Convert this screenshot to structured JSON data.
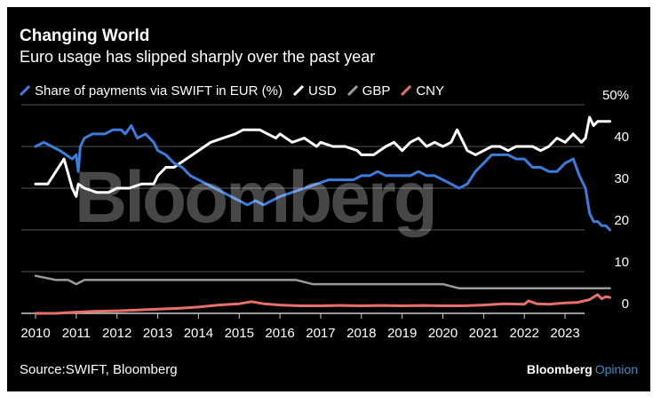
{
  "title": "Changing World",
  "subtitle": "Euro usage has slipped sharply over the past year",
  "source": "Source:SWIFT, Bloomberg",
  "logo": {
    "brand": "Bloomberg",
    "suffix": "Opinion",
    "watermark": "Bloomberg"
  },
  "colors": {
    "EUR": "#3b7ddd",
    "USD": "#ffffff",
    "GBP": "#9a9a9a",
    "CNY": "#e8706a",
    "grid": "#555555",
    "background": "#000000"
  },
  "legend": [
    {
      "label": "Share of payments via SWIFT in EUR (%)",
      "color": "#3b7ddd"
    },
    {
      "label": "USD",
      "color": "#ffffff"
    },
    {
      "label": "GBP",
      "color": "#9a9a9a"
    },
    {
      "label": "CNY",
      "color": "#e8706a"
    }
  ],
  "chart_data": {
    "type": "line",
    "title": "Changing World",
    "subtitle": "Euro usage has slipped sharply over the past year",
    "ylabel": "",
    "xlabel": "",
    "y_unit_label": "50%",
    "ylim": [
      0,
      50
    ],
    "xlim": [
      2010,
      2024
    ],
    "y_ticks": [
      0,
      10,
      20,
      30,
      40,
      50
    ],
    "y_tick_labels": [
      "0",
      "10",
      "20",
      "30",
      "40",
      "50%"
    ],
    "x_ticks": [
      2010,
      2011,
      2012,
      2013,
      2014,
      2015,
      2016,
      2017,
      2018,
      2019,
      2020,
      2021,
      2022,
      2023
    ],
    "x_tick_labels": [
      "2010",
      "2011",
      "2012",
      "2013",
      "2014",
      "2015",
      "2016",
      "2017",
      "2018",
      "2019",
      "2020",
      "2021",
      "2022",
      "2023"
    ],
    "grid": true,
    "legend_position": "top-left",
    "series": [
      {
        "name": "Share of payments via SWIFT in EUR (%)",
        "color": "#3b7ddd",
        "points": [
          [
            2010.0,
            40
          ],
          [
            2010.2,
            41
          ],
          [
            2010.4,
            40
          ],
          [
            2010.6,
            39
          ],
          [
            2010.75,
            38
          ],
          [
            2010.9,
            37
          ],
          [
            2011.0,
            38
          ],
          [
            2011.05,
            34
          ],
          [
            2011.1,
            40
          ],
          [
            2011.2,
            42
          ],
          [
            2011.4,
            43
          ],
          [
            2011.7,
            43
          ],
          [
            2011.9,
            44
          ],
          [
            2012.1,
            44
          ],
          [
            2012.2,
            43
          ],
          [
            2012.35,
            45
          ],
          [
            2012.5,
            42
          ],
          [
            2012.7,
            43
          ],
          [
            2012.9,
            41
          ],
          [
            2013.0,
            39
          ],
          [
            2013.2,
            38
          ],
          [
            2013.4,
            36
          ],
          [
            2013.6,
            35
          ],
          [
            2013.8,
            33
          ],
          [
            2014.0,
            32
          ],
          [
            2014.2,
            31
          ],
          [
            2014.4,
            30
          ],
          [
            2014.6,
            29
          ],
          [
            2014.8,
            28
          ],
          [
            2015.0,
            27
          ],
          [
            2015.2,
            26
          ],
          [
            2015.4,
            27
          ],
          [
            2015.6,
            26
          ],
          [
            2015.8,
            27
          ],
          [
            2016.0,
            28
          ],
          [
            2016.3,
            29
          ],
          [
            2016.6,
            30
          ],
          [
            2016.9,
            31
          ],
          [
            2017.2,
            32
          ],
          [
            2017.5,
            32
          ],
          [
            2017.8,
            32
          ],
          [
            2018.0,
            33
          ],
          [
            2018.2,
            33
          ],
          [
            2018.4,
            34
          ],
          [
            2018.6,
            33
          ],
          [
            2018.8,
            33
          ],
          [
            2019.0,
            33
          ],
          [
            2019.2,
            33
          ],
          [
            2019.4,
            34
          ],
          [
            2019.6,
            33
          ],
          [
            2019.8,
            33
          ],
          [
            2020.0,
            32
          ],
          [
            2020.2,
            31
          ],
          [
            2020.4,
            30
          ],
          [
            2020.6,
            31
          ],
          [
            2020.8,
            34
          ],
          [
            2021.0,
            36
          ],
          [
            2021.2,
            38
          ],
          [
            2021.4,
            38
          ],
          [
            2021.6,
            38
          ],
          [
            2021.8,
            37
          ],
          [
            2022.0,
            37
          ],
          [
            2022.2,
            35
          ],
          [
            2022.4,
            35
          ],
          [
            2022.6,
            34
          ],
          [
            2022.8,
            34
          ],
          [
            2023.0,
            36
          ],
          [
            2023.2,
            37
          ],
          [
            2023.35,
            33
          ],
          [
            2023.5,
            30
          ],
          [
            2023.6,
            24
          ],
          [
            2023.7,
            22
          ],
          [
            2023.8,
            22
          ],
          [
            2023.9,
            21
          ],
          [
            2024.0,
            21
          ],
          [
            2024.1,
            20
          ]
        ]
      },
      {
        "name": "USD",
        "color": "#ffffff",
        "points": [
          [
            2010.0,
            31
          ],
          [
            2010.3,
            31
          ],
          [
            2010.5,
            34
          ],
          [
            2010.7,
            37
          ],
          [
            2010.9,
            30
          ],
          [
            2011.0,
            28
          ],
          [
            2011.05,
            31
          ],
          [
            2011.2,
            30
          ],
          [
            2011.5,
            29
          ],
          [
            2011.8,
            29
          ],
          [
            2012.0,
            30
          ],
          [
            2012.3,
            30
          ],
          [
            2012.6,
            31
          ],
          [
            2012.9,
            31
          ],
          [
            2013.0,
            33
          ],
          [
            2013.2,
            35
          ],
          [
            2013.4,
            35
          ],
          [
            2013.7,
            37
          ],
          [
            2014.0,
            39
          ],
          [
            2014.3,
            41
          ],
          [
            2014.6,
            42
          ],
          [
            2014.9,
            43
          ],
          [
            2015.1,
            44
          ],
          [
            2015.3,
            44
          ],
          [
            2015.5,
            44
          ],
          [
            2015.7,
            43
          ],
          [
            2015.9,
            42
          ],
          [
            2016.0,
            43
          ],
          [
            2016.3,
            41
          ],
          [
            2016.6,
            42
          ],
          [
            2016.9,
            40
          ],
          [
            2017.0,
            41
          ],
          [
            2017.3,
            40
          ],
          [
            2017.6,
            40
          ],
          [
            2017.9,
            39
          ],
          [
            2018.0,
            38
          ],
          [
            2018.3,
            38
          ],
          [
            2018.6,
            40
          ],
          [
            2018.8,
            41
          ],
          [
            2019.0,
            39
          ],
          [
            2019.2,
            41
          ],
          [
            2019.4,
            42
          ],
          [
            2019.6,
            40
          ],
          [
            2019.8,
            41
          ],
          [
            2020.0,
            40
          ],
          [
            2020.2,
            41
          ],
          [
            2020.35,
            44
          ],
          [
            2020.5,
            41
          ],
          [
            2020.6,
            39
          ],
          [
            2020.8,
            38
          ],
          [
            2021.0,
            39
          ],
          [
            2021.2,
            40
          ],
          [
            2021.4,
            40
          ],
          [
            2021.6,
            39
          ],
          [
            2021.8,
            40
          ],
          [
            2022.0,
            40
          ],
          [
            2022.2,
            40
          ],
          [
            2022.4,
            39
          ],
          [
            2022.6,
            40
          ],
          [
            2022.8,
            42
          ],
          [
            2023.0,
            41
          ],
          [
            2023.2,
            43
          ],
          [
            2023.4,
            41
          ],
          [
            2023.5,
            42
          ],
          [
            2023.6,
            47
          ],
          [
            2023.7,
            45
          ],
          [
            2023.8,
            46
          ],
          [
            2024.0,
            46
          ],
          [
            2024.1,
            46
          ]
        ]
      },
      {
        "name": "GBP",
        "color": "#9a9a9a",
        "points": [
          [
            2010.0,
            9
          ],
          [
            2010.5,
            8
          ],
          [
            2010.8,
            8
          ],
          [
            2011.0,
            7
          ],
          [
            2011.2,
            8
          ],
          [
            2011.6,
            8
          ],
          [
            2012.0,
            8
          ],
          [
            2012.4,
            8
          ],
          [
            2012.8,
            8
          ],
          [
            2013.2,
            8
          ],
          [
            2013.6,
            8
          ],
          [
            2014.0,
            8
          ],
          [
            2014.4,
            8
          ],
          [
            2014.8,
            8
          ],
          [
            2015.2,
            8
          ],
          [
            2015.6,
            8
          ],
          [
            2016.0,
            8
          ],
          [
            2016.4,
            8
          ],
          [
            2016.8,
            7
          ],
          [
            2017.2,
            7
          ],
          [
            2017.6,
            7
          ],
          [
            2018.0,
            7
          ],
          [
            2018.4,
            7
          ],
          [
            2018.8,
            7
          ],
          [
            2019.2,
            7
          ],
          [
            2019.6,
            7
          ],
          [
            2020.0,
            7
          ],
          [
            2020.4,
            6
          ],
          [
            2020.8,
            6
          ],
          [
            2021.2,
            6
          ],
          [
            2021.6,
            6
          ],
          [
            2022.0,
            6
          ],
          [
            2022.4,
            6
          ],
          [
            2022.8,
            6
          ],
          [
            2023.2,
            6
          ],
          [
            2023.6,
            6
          ],
          [
            2024.0,
            6
          ],
          [
            2024.1,
            6
          ]
        ]
      },
      {
        "name": "CNY",
        "color": "#e8706a",
        "points": [
          [
            2010.0,
            0
          ],
          [
            2010.5,
            0
          ],
          [
            2011.0,
            0.3
          ],
          [
            2011.5,
            0.5
          ],
          [
            2012.0,
            0.6
          ],
          [
            2012.5,
            0.8
          ],
          [
            2013.0,
            1
          ],
          [
            2013.5,
            1.2
          ],
          [
            2014.0,
            1.5
          ],
          [
            2014.5,
            2
          ],
          [
            2015.0,
            2.3
          ],
          [
            2015.3,
            2.8
          ],
          [
            2015.6,
            2.3
          ],
          [
            2016.0,
            2
          ],
          [
            2016.5,
            1.8
          ],
          [
            2017.0,
            1.8
          ],
          [
            2017.5,
            1.9
          ],
          [
            2018.0,
            1.8
          ],
          [
            2018.5,
            1.9
          ],
          [
            2019.0,
            1.8
          ],
          [
            2019.5,
            1.9
          ],
          [
            2020.0,
            1.8
          ],
          [
            2020.5,
            1.8
          ],
          [
            2021.0,
            2
          ],
          [
            2021.5,
            2.3
          ],
          [
            2022.0,
            2.2
          ],
          [
            2022.1,
            3
          ],
          [
            2022.3,
            2.3
          ],
          [
            2022.6,
            2.2
          ],
          [
            2023.0,
            2.5
          ],
          [
            2023.3,
            2.6
          ],
          [
            2023.6,
            3.3
          ],
          [
            2023.8,
            4.5
          ],
          [
            2023.9,
            3.5
          ],
          [
            2024.0,
            4
          ],
          [
            2024.1,
            3.8
          ]
        ]
      }
    ]
  }
}
